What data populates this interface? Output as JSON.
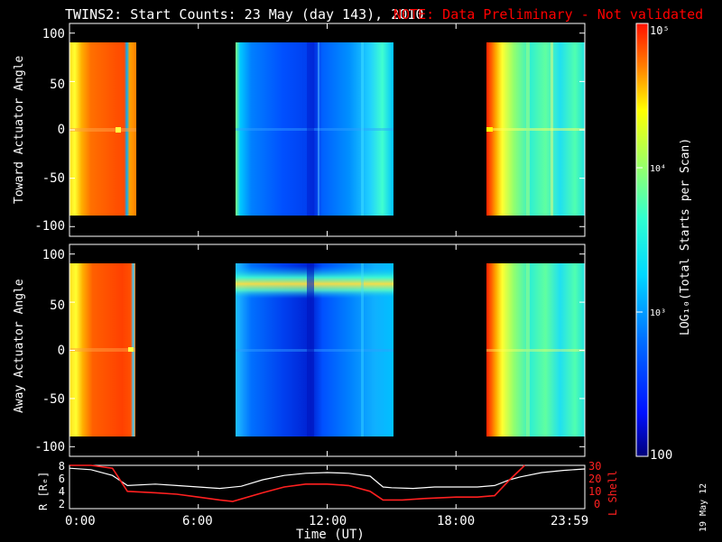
{
  "title": "TWINS2: Start Counts: 23 May (day 143), 2010",
  "note": "NOTE: Data Preliminary - Not validated",
  "stamp": "19 May 12",
  "colors": {
    "background": "#000000",
    "note": "#ff0000",
    "r_line": "#ffffff",
    "lshell_line": "#ff0000",
    "colorbar_label": "#ffffff"
  },
  "panels": [
    {
      "ylabel": "Toward Actuator Angle",
      "yticks": [
        "100",
        "50",
        "0",
        "-50",
        "-100"
      ]
    },
    {
      "ylabel": "Away Actuator Angle",
      "yticks": [
        "100",
        "50",
        "0",
        "-50",
        "-100"
      ]
    }
  ],
  "bottom_panel": {
    "ylabel_left": "R [Rₑ]",
    "ylabel_right": "L Shell",
    "yticks_left": [
      "8",
      "6",
      "4",
      "2"
    ],
    "yticks_right": [
      "30",
      "20",
      "10",
      "0"
    ]
  },
  "xaxis": {
    "label": "Time (UT)",
    "ticks": [
      "0:00",
      "6:00",
      "12:00",
      "18:00",
      "23:59"
    ]
  },
  "colorbar": {
    "label": "LOG₁₀(Total Starts per Scan)",
    "ticks": [
      "10⁵",
      "10⁴",
      "10³",
      "100"
    ]
  },
  "chart_data": [
    {
      "type": "heatmap",
      "title": "TWINS2: Start Counts: 23 May (day 143), 2010",
      "xlabel": "Time (UT)",
      "ylabel": "Toward Actuator Angle",
      "xlim": [
        0,
        24
      ],
      "ylim": [
        -110,
        110
      ],
      "data_angle_range": [
        -88,
        90
      ],
      "colorscale": "log10",
      "clim": [
        100,
        100000
      ],
      "segments": [
        {
          "t_start": 0.0,
          "t_end": 2.8,
          "level": "high (~1e4 to 1e5)"
        },
        {
          "t_start": 7.8,
          "t_end": 15.2,
          "level": "low (~2e2 to 2e3)"
        },
        {
          "t_start": 19.8,
          "t_end": 24.0,
          "level": "high near start, mid (~3e3) later"
        }
      ]
    },
    {
      "type": "heatmap",
      "xlabel": "Time (UT)",
      "ylabel": "Away Actuator Angle",
      "xlim": [
        0,
        24
      ],
      "ylim": [
        -110,
        110
      ],
      "data_angle_range": [
        -88,
        90
      ],
      "colorscale": "log10",
      "clim": [
        100,
        100000
      ],
      "segments": [
        {
          "t_start": 0.0,
          "t_end": 2.7,
          "level": "high (~1e4 to 1e5)"
        },
        {
          "t_start": 7.8,
          "t_end": 15.2,
          "level": "low (~2e2 to 2e3), enhanced band near 70 deg"
        },
        {
          "t_start": 19.8,
          "t_end": 24.0,
          "level": "high near start, mid (~3e3) later"
        }
      ]
    },
    {
      "type": "line",
      "xlabel": "Time (UT)",
      "ylabel": "R [Rₑ]",
      "y2label": "L Shell",
      "xlim": [
        0,
        24
      ],
      "ylim": [
        2,
        8
      ],
      "y2lim": [
        0,
        30
      ],
      "series": [
        {
          "name": "R [Rₑ]",
          "axis": "left",
          "x": [
            0,
            1,
            2,
            2.7,
            4,
            5,
            6,
            7,
            8,
            9,
            10,
            11,
            12,
            13,
            14,
            14.6,
            15,
            16,
            17,
            18,
            19,
            19.8,
            20.5,
            21,
            22,
            23,
            24
          ],
          "y": [
            7.6,
            7.4,
            6.6,
            5.2,
            5.4,
            5.2,
            5.0,
            4.8,
            5.1,
            6.0,
            6.6,
            6.9,
            7.0,
            6.9,
            6.5,
            5.0,
            4.9,
            4.8,
            5.0,
            5.0,
            5.0,
            5.2,
            6.0,
            6.4,
            7.0,
            7.3,
            7.5
          ]
        },
        {
          "name": "L Shell",
          "axis": "right",
          "x": [
            0,
            1,
            2,
            2.7,
            4,
            5,
            6,
            7,
            7.6,
            9,
            10,
            11,
            12,
            13,
            14,
            14.6,
            15.5,
            16.5,
            18,
            19,
            19.8,
            20.5,
            21.2
          ],
          "y": [
            31,
            31,
            28,
            12,
            11,
            10,
            8,
            6,
            5,
            11,
            15,
            17,
            17,
            16,
            12,
            6,
            6,
            7,
            8,
            8,
            9,
            20,
            32
          ]
        }
      ]
    }
  ]
}
